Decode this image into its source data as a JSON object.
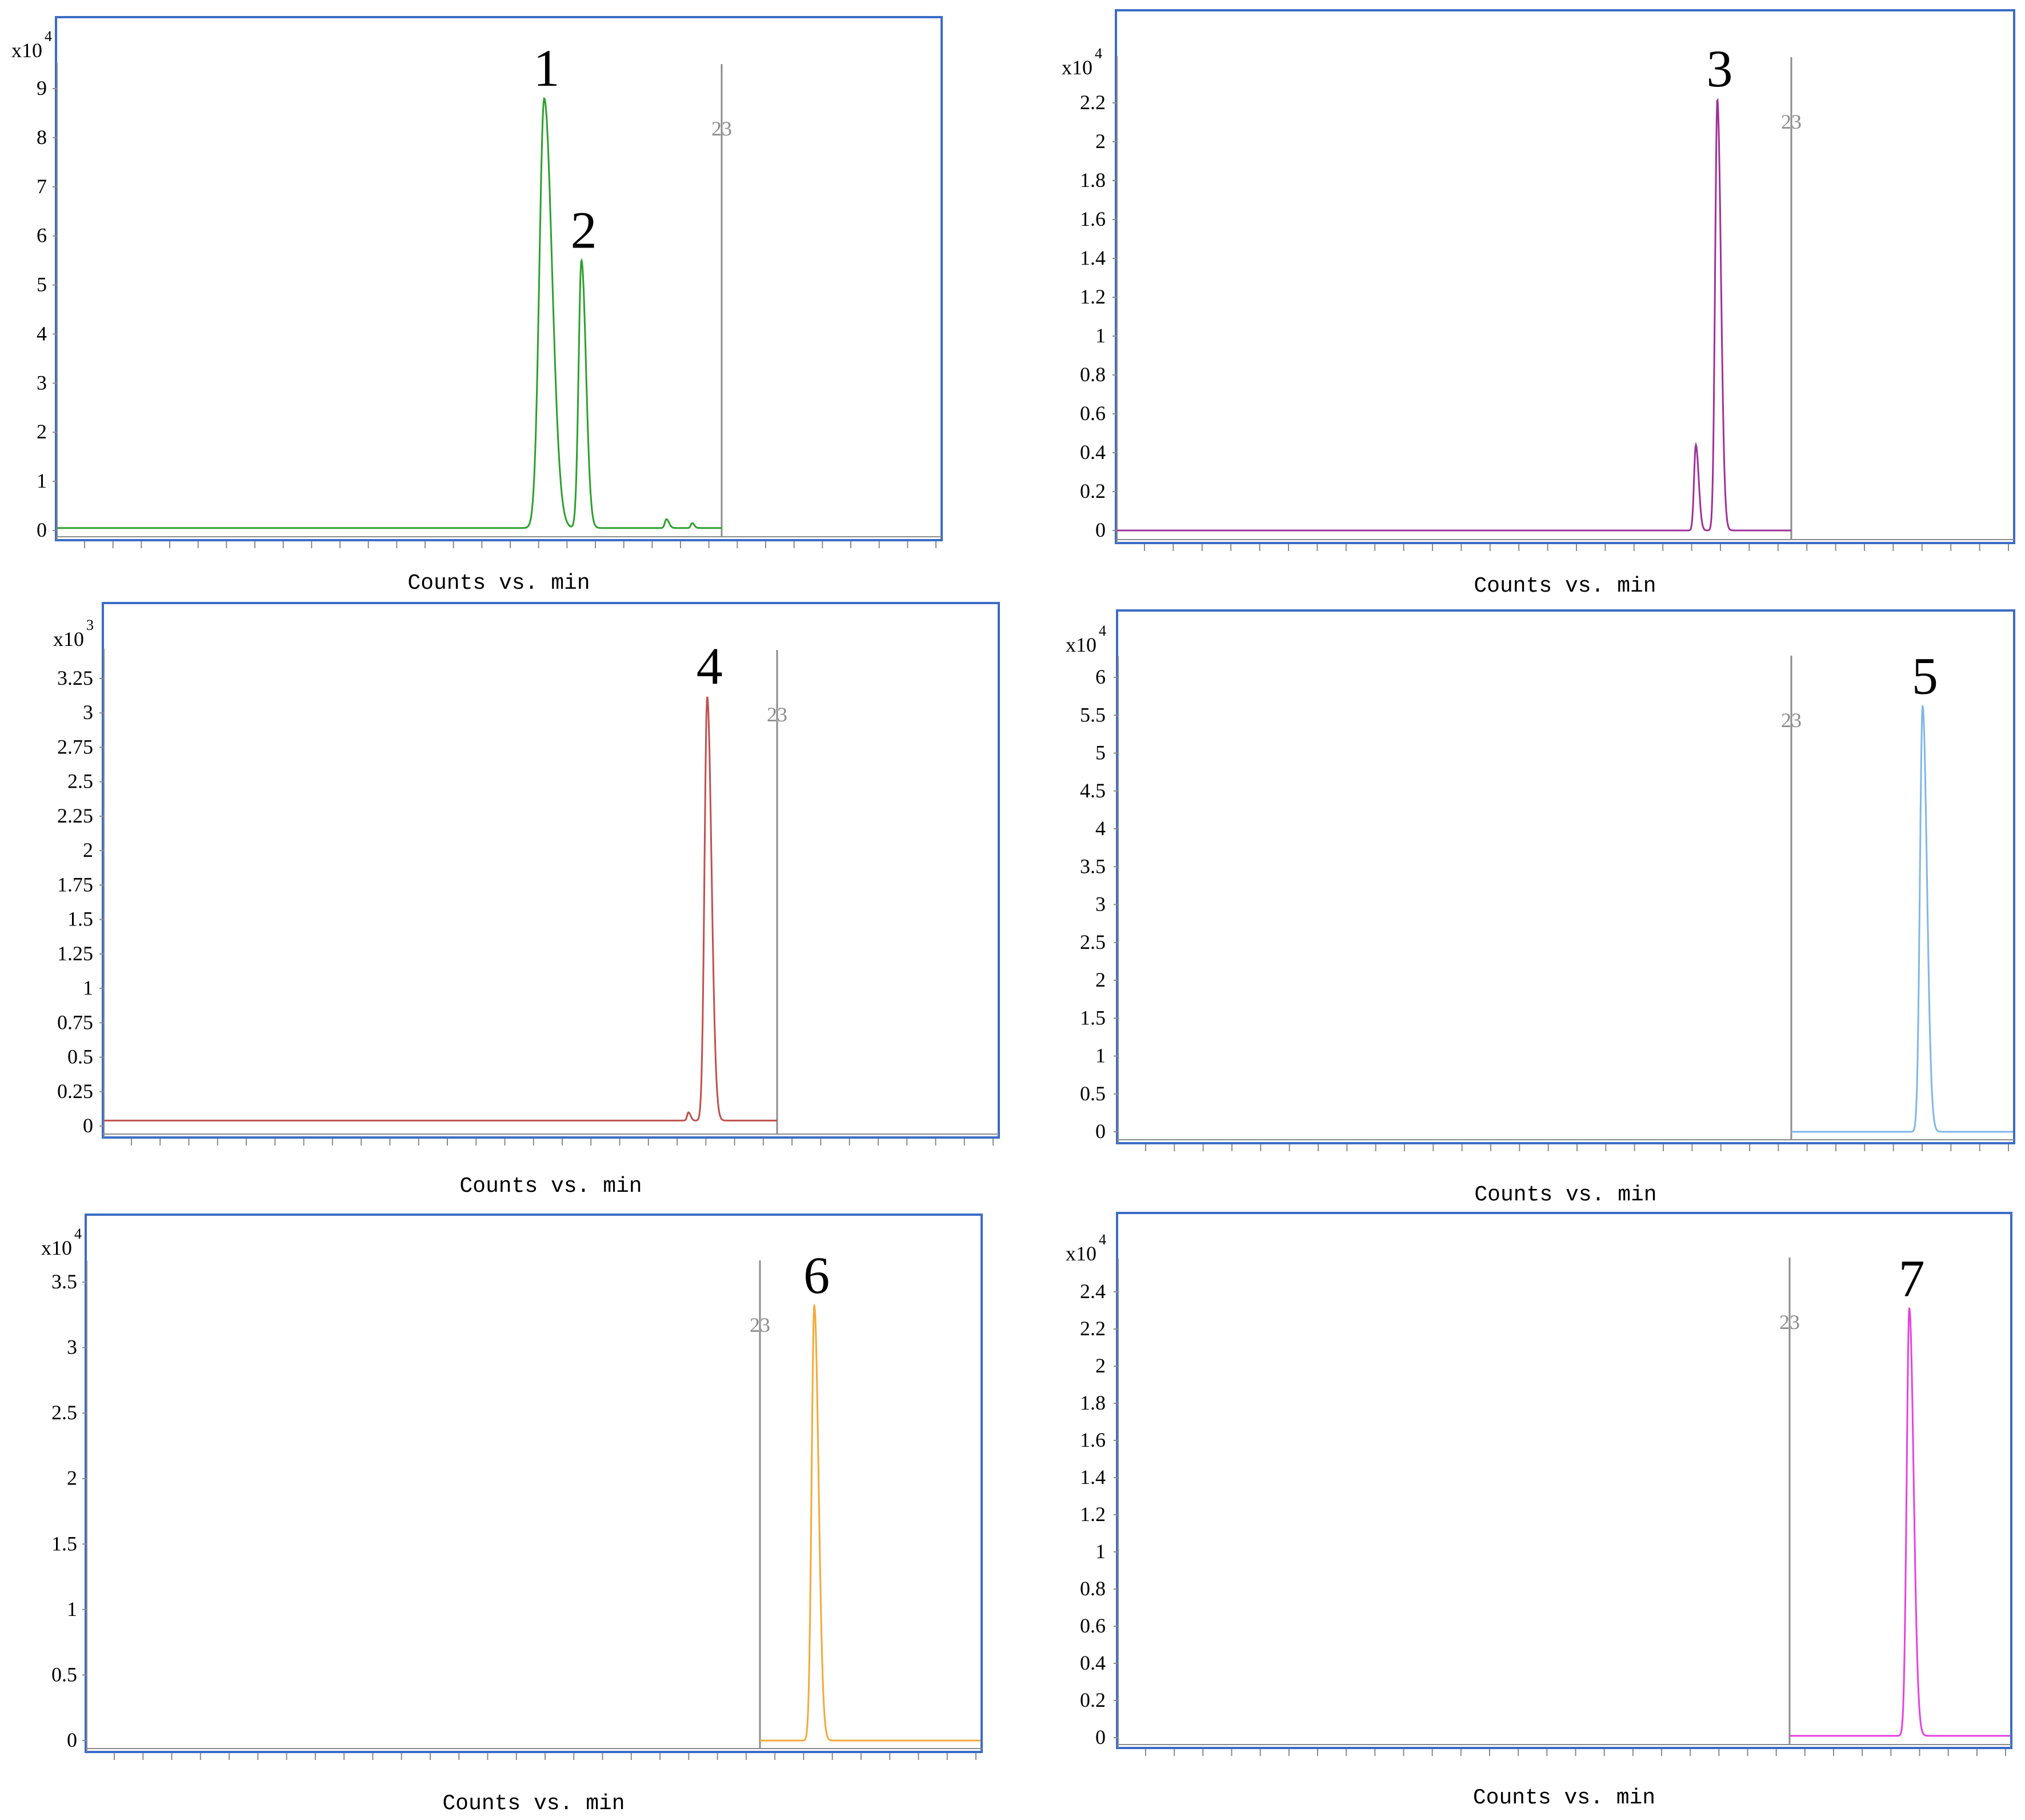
{
  "xlabel_text": "Counts vs. min",
  "colors": {
    "frame": "#3b6cc6",
    "marker": "#8c8c8c",
    "axis": "#8a8a8a",
    "text": "#000000"
  },
  "chart_data": [
    {
      "type": "line",
      "multiplier_base": "x10",
      "multiplier_exp": "4",
      "yticks": [
        "0",
        "1",
        "2",
        "3",
        "4",
        "5",
        "6",
        "7",
        "8",
        "9"
      ],
      "ylim": [
        0,
        9.5
      ],
      "marker_label": "23",
      "xlabel": "Counts vs. min",
      "series": [
        {
          "color": "#2ca02c",
          "baseline": 0.05,
          "peaks": [
            {
              "x": 0.55,
              "h": 8.75,
              "w": 0.0055,
              "label": "1"
            },
            {
              "x": 0.592,
              "h": 5.45,
              "w": 0.0032,
              "label": "2"
            },
            {
              "x": 0.688,
              "h": 0.18,
              "w": 0.0018
            },
            {
              "x": 0.717,
              "h": 0.1,
              "w": 0.0015
            }
          ]
        }
      ]
    },
    {
      "type": "line",
      "multiplier_base": "x10",
      "multiplier_exp": "4",
      "yticks": [
        "0",
        "0.2",
        "0.4",
        "0.6",
        "0.8",
        "1",
        "1.2",
        "1.4",
        "1.6",
        "1.8",
        "2",
        "2.2"
      ],
      "ylim": [
        0,
        2.3
      ],
      "marker_label": "23",
      "xlabel": "Counts vs. min",
      "series": [
        {
          "color": "#a0309a",
          "baseline": 0.0,
          "peaks": [
            {
              "x": 0.646,
              "h": 0.44,
              "w": 0.002
            },
            {
              "x": 0.67,
              "h": 2.22,
              "w": 0.0025,
              "label": "3"
            }
          ]
        }
      ]
    },
    {
      "type": "line",
      "multiplier_base": "x10",
      "multiplier_exp": "3",
      "yticks": [
        "0",
        "0.25",
        "0.5",
        "0.75",
        "1",
        "1.25",
        "1.5",
        "1.75",
        "2",
        "2.25",
        "2.5",
        "2.75",
        "3",
        "3.25"
      ],
      "ylim": [
        0,
        3.45
      ],
      "marker_label": "23",
      "xlabel": "Counts vs. min",
      "series": [
        {
          "color": "#c0504d",
          "baseline": 0.04,
          "peaks": [
            {
              "x": 0.654,
              "h": 0.06,
              "w": 0.0015
            },
            {
              "x": 0.675,
              "h": 3.08,
              "w": 0.003,
              "label": "4"
            }
          ]
        }
      ]
    },
    {
      "type": "line",
      "multiplier_base": "x10",
      "multiplier_exp": "4",
      "yticks": [
        "0",
        "0.5",
        "1",
        "1.5",
        "2",
        "2.5",
        "3",
        "3.5",
        "4",
        "4.5",
        "5",
        "5.5",
        "6"
      ],
      "ylim": [
        0,
        6.3
      ],
      "marker_label": "23",
      "xlabel": "Counts vs. min",
      "series": [
        {
          "color": "#7fb7e8",
          "baseline": 0.0,
          "peaks": [
            {
              "x": 0.899,
              "h": 5.62,
              "w": 0.003,
              "label": "5"
            }
          ]
        }
      ]
    },
    {
      "type": "line",
      "multiplier_base": "x10",
      "multiplier_exp": "4",
      "yticks": [
        "0",
        "0.5",
        "1",
        "1.5",
        "2",
        "2.5",
        "3",
        "3.5"
      ],
      "ylim": [
        0,
        3.7
      ],
      "marker_label": "23",
      "xlabel": "Counts vs. min",
      "series": [
        {
          "color": "#f4a93a",
          "baseline": 0.0,
          "peaks": [
            {
              "x": 0.814,
              "h": 3.32,
              "w": 0.003,
              "label": "6"
            }
          ]
        }
      ]
    },
    {
      "type": "line",
      "multiplier_base": "x10",
      "multiplier_exp": "4",
      "yticks": [
        "0",
        "0.2",
        "0.4",
        "0.6",
        "0.8",
        "1",
        "1.2",
        "1.4",
        "1.6",
        "1.8",
        "2",
        "2.2",
        "2.4"
      ],
      "ylim": [
        0,
        2.55
      ],
      "marker_label": "23",
      "xlabel": "Counts vs. min",
      "series": [
        {
          "color": "#e642e0",
          "baseline": 0.01,
          "peaks": [
            {
              "x": 0.887,
              "h": 2.3,
              "w": 0.003,
              "label": "7"
            }
          ]
        }
      ]
    }
  ]
}
